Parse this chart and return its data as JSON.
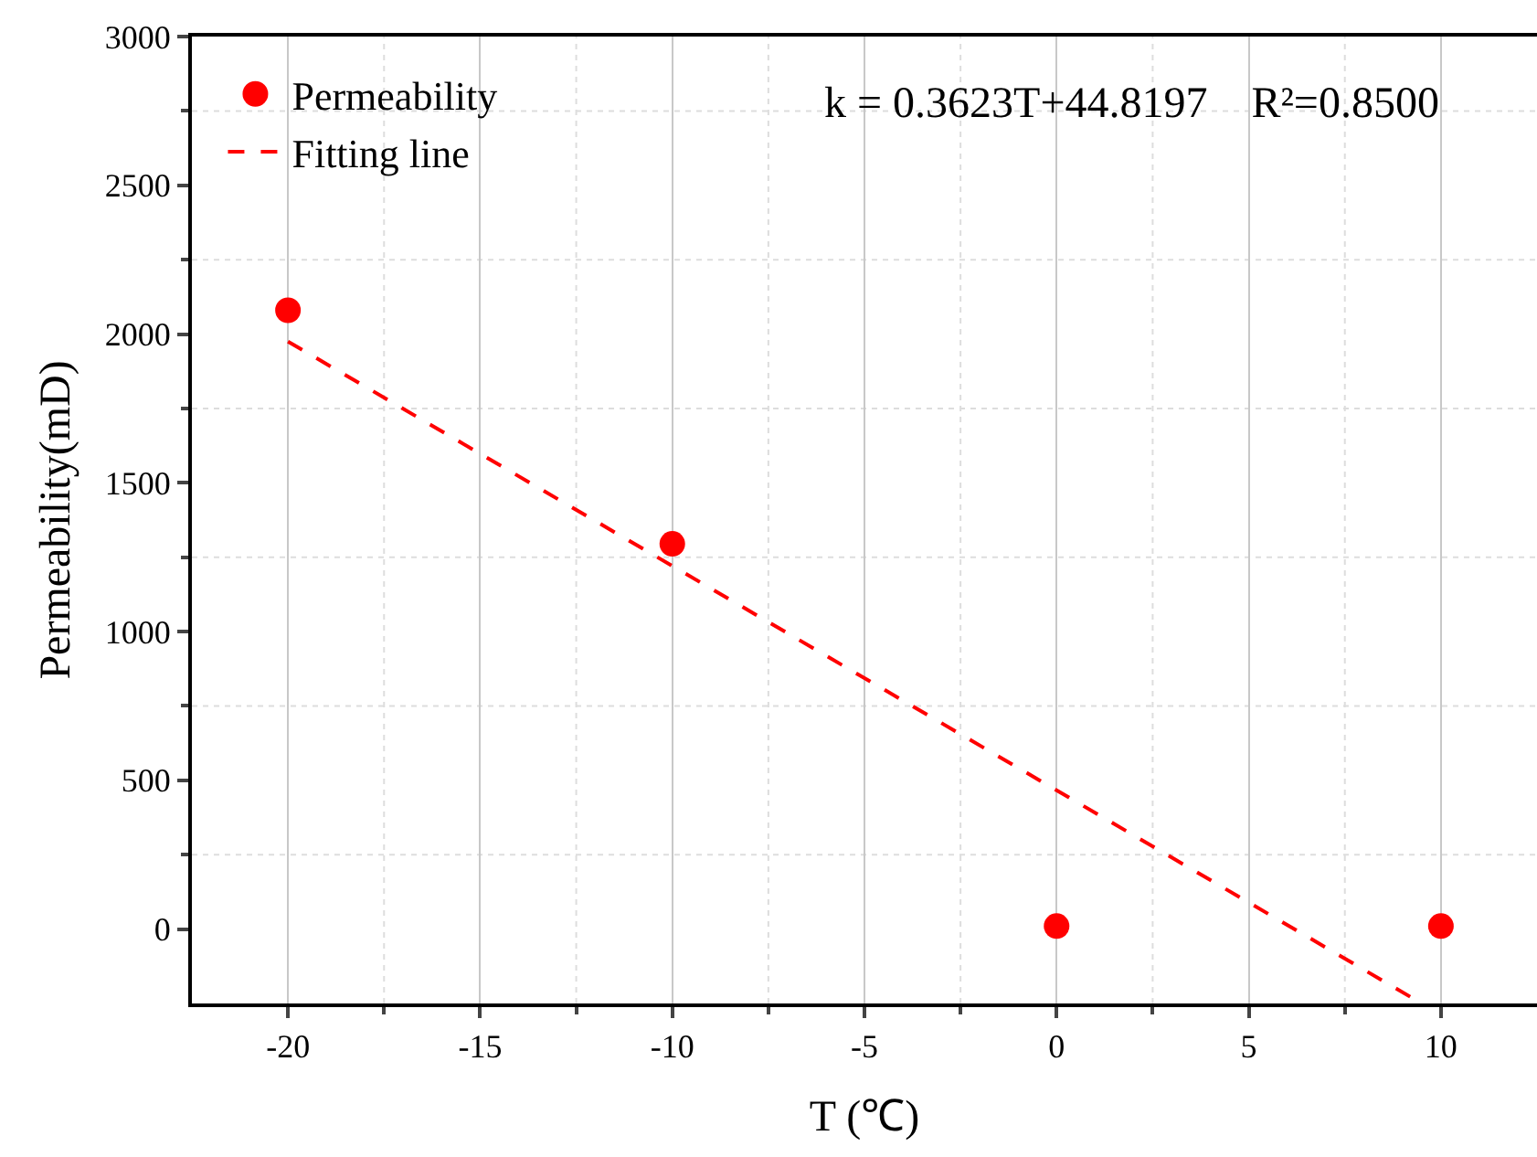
{
  "chart_data": {
    "type": "scatter",
    "xlabel": "T (℃)",
    "ylabel": "Permeability(mD)",
    "xlim": [
      -22.5,
      12.5
    ],
    "xticks": [
      -20,
      -15,
      -10,
      -5,
      0,
      5,
      10
    ],
    "ylim": [
      -250,
      3000
    ],
    "yticks": [
      0,
      500,
      1000,
      1500,
      2000,
      2500,
      3000
    ],
    "grid": true,
    "legend": "top left",
    "marker": "circle",
    "series": [
      {
        "name": "Permeability",
        "color": "#ff0000",
        "x": [
          -20,
          -10,
          0,
          10
        ],
        "values": [
          2080,
          1295,
          10,
          10
        ]
      },
      {
        "name": "Fitting line",
        "type": "line",
        "line_style": "dashed",
        "marker": "none",
        "color": "#ff0000",
        "x": [
          -20,
          9.5
        ],
        "values": [
          1975,
          -250
        ]
      }
    ],
    "annotations": [
      "k = 0.3623T+44.8197    R²=0.8500"
    ]
  }
}
